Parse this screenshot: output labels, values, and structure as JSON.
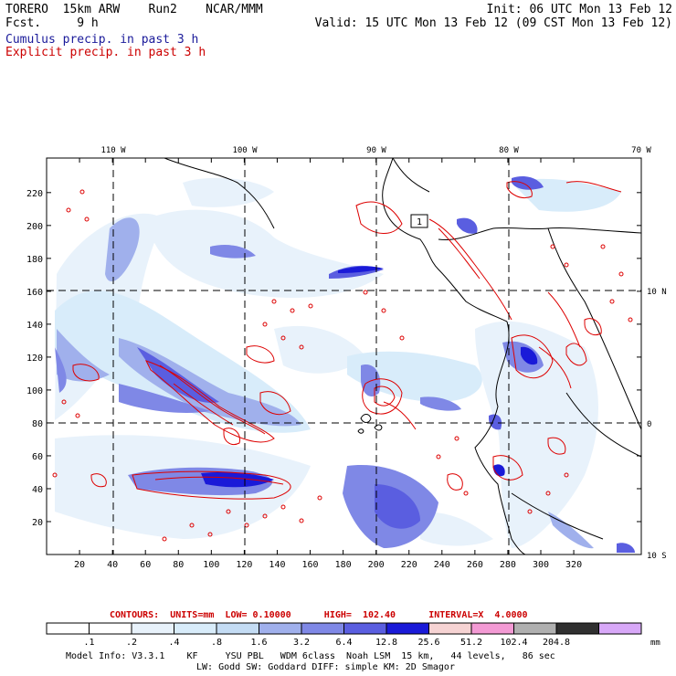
{
  "header": {
    "model_line": "TORERO  15km ARW    Run2    NCAR/MMM",
    "fcst_line": "Fcst.     9 h",
    "init_line": "Init: 06 UTC Mon 13 Feb 12",
    "valid_line": "Valid: 15 UTC Mon 13 Feb 12 (09 CST Mon 13 Feb 12)",
    "cumulus_legend": "Cumulus precip. in past 3 h",
    "explicit_legend": "Explicit precip. in past 3 h",
    "cumulus_color": "#1a1a9a",
    "explicit_color": "#cc0000"
  },
  "map": {
    "lon_labels": [
      "110 W",
      "100 W",
      "90 W",
      "80 W",
      "70 W"
    ],
    "lat_labels": [
      "10 N",
      "0",
      "10 S"
    ],
    "x_ticks": [
      "20",
      "40",
      "60",
      "80",
      "100",
      "120",
      "140",
      "160",
      "180",
      "200",
      "220",
      "240",
      "260",
      "280",
      "300",
      "320"
    ],
    "y_ticks": [
      "220",
      "200",
      "180",
      "160",
      "140",
      "120",
      "100",
      "80",
      "60",
      "40",
      "20"
    ],
    "box_label": "1"
  },
  "contours": {
    "label": "CONTOURS:  UNITS=mm  LOW= 0.10000      HIGH=  102.40      INTERVAL=X  4.0000",
    "color": "#cc0000"
  },
  "colorbar": {
    "labels": [
      ".1",
      ".2",
      ".4",
      ".8",
      "1.6",
      "3.2",
      "6.4",
      "12.8",
      "25.6",
      "51.2",
      "102.4",
      "204.8"
    ],
    "units": "mm",
    "colors": [
      "#ffffff",
      "#ffffff",
      "#e8f2fb",
      "#d8ecfa",
      "#c4dcf4",
      "#a0b0ec",
      "#7f88e6",
      "#5a5ee0",
      "#1a1ad8",
      "#f6d3d3",
      "#f39ad4",
      "#b0b0b0",
      "#303030",
      "#d8a8f8"
    ]
  },
  "footer": {
    "line1": "Model Info: V3.3.1    KF     YSU PBL   WDM 6class  Noah LSM  15 km,   44 levels,   86 sec",
    "line2": "LW: Godd SW: Goddard DIFF: simple KM: 2D Smagor"
  }
}
